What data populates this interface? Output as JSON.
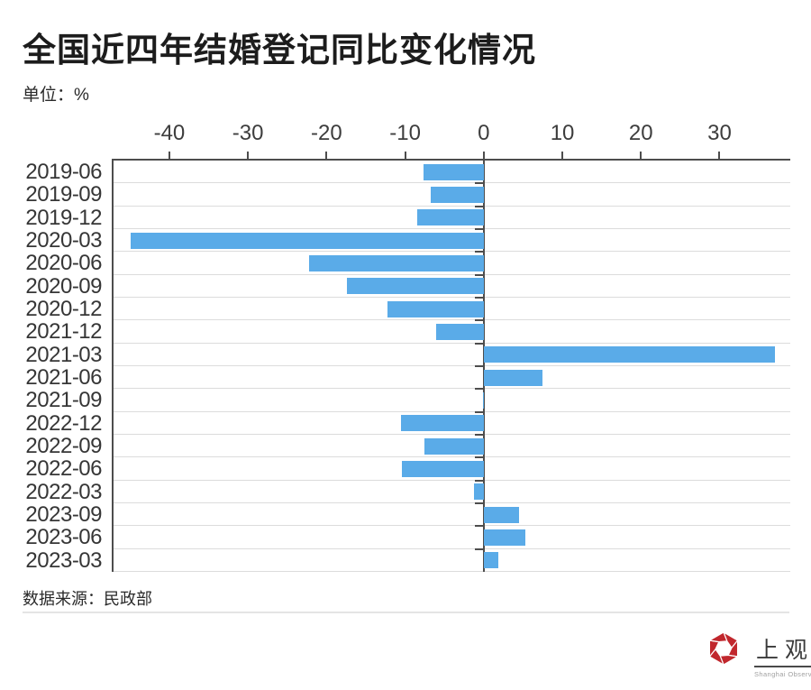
{
  "header": {
    "title": "全国近四年结婚登记同比变化情况",
    "unit_label": "单位：%"
  },
  "chart_data": {
    "type": "bar",
    "orientation": "horizontal",
    "title": "全国近四年结婚登记同比变化情况",
    "unit": "%",
    "categories": [
      "2019-06",
      "2019-09",
      "2019-12",
      "2020-03",
      "2020-06",
      "2020-09",
      "2020-12",
      "2021-12",
      "2021-03",
      "2021-06",
      "2021-09",
      "2022-12",
      "2022-09",
      "2022-06",
      "2022-03",
      "2023-09",
      "2023-06",
      "2023-03"
    ],
    "values": [
      -7.7,
      -6.7,
      -8.5,
      -44.9,
      -22.2,
      -17.4,
      -12.2,
      -6.0,
      37.1,
      7.5,
      -0.1,
      -10.5,
      -7.5,
      -10.4,
      -1.2,
      4.5,
      5.3,
      1.8
    ],
    "x_ticks": [
      -40,
      -30,
      -20,
      -10,
      0,
      10,
      20,
      30
    ],
    "xlim": [
      -47.1,
      39.0
    ],
    "grid": true,
    "legend": "none",
    "bar_color": "#5aabe8",
    "axis_color": "#4d4d4d",
    "grid_color": "#dcdcdc"
  },
  "footer": {
    "source": "数据来源：民政部"
  },
  "logo": {
    "name": "上观",
    "subtitle": "Shanghai Observer",
    "brand_color": "#c1272d"
  }
}
